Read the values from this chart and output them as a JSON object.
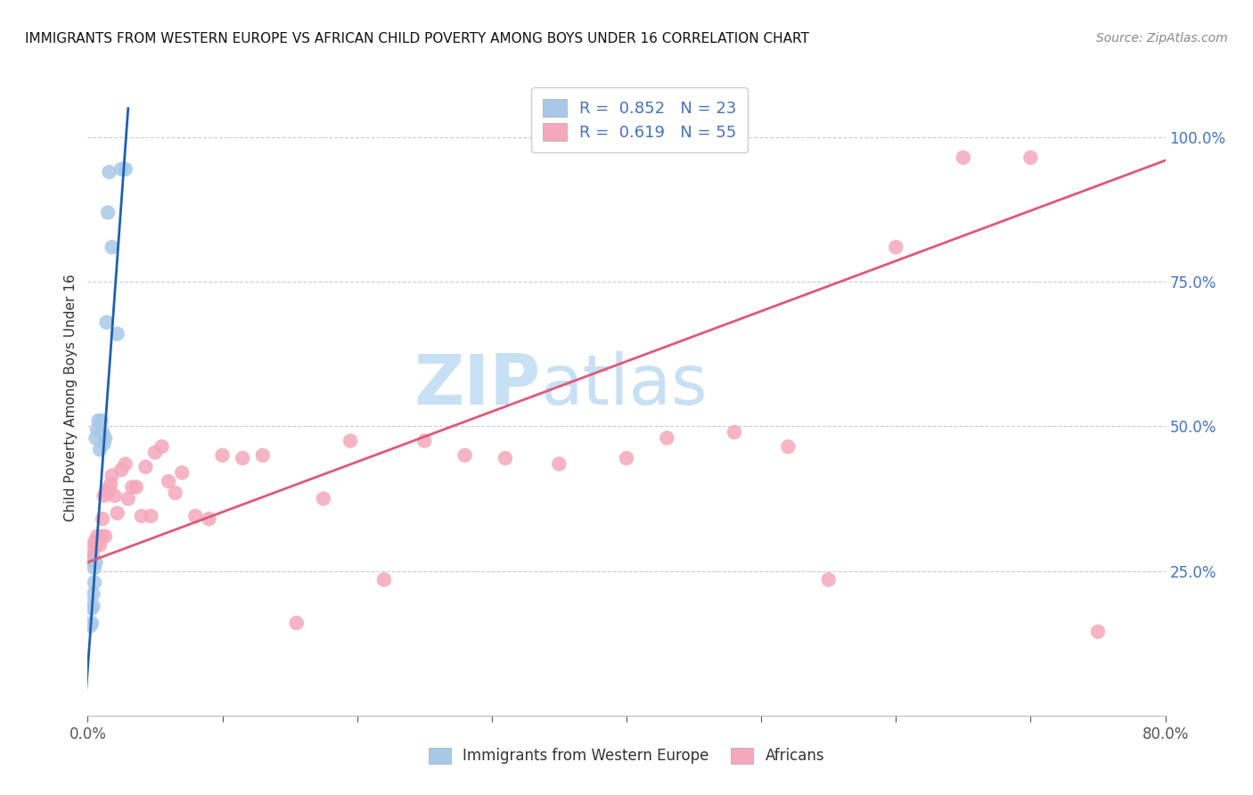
{
  "title": "IMMIGRANTS FROM WESTERN EUROPE VS AFRICAN CHILD POVERTY AMONG BOYS UNDER 16 CORRELATION CHART",
  "source": "Source: ZipAtlas.com",
  "ylabel": "Child Poverty Among Boys Under 16",
  "xlabel_blue": "Immigrants from Western Europe",
  "xlabel_pink": "Africans",
  "xlim": [
    0.0,
    0.8
  ],
  "ylim": [
    0.0,
    1.1
  ],
  "xticks": [
    0.0,
    0.1,
    0.2,
    0.3,
    0.4,
    0.5,
    0.6,
    0.7,
    0.8
  ],
  "xticklabels": [
    "0.0%",
    "",
    "",
    "",
    "",
    "",
    "",
    "",
    "80.0%"
  ],
  "yticks_right": [
    0.25,
    0.5,
    0.75,
    1.0
  ],
  "ytick_labels_right": [
    "25.0%",
    "50.0%",
    "75.0%",
    "100.0%"
  ],
  "legend_blue_R": "0.852",
  "legend_blue_N": "23",
  "legend_pink_R": "0.619",
  "legend_pink_N": "55",
  "blue_color": "#A8C8E8",
  "pink_color": "#F4A8BC",
  "line_blue": "#2060B0",
  "line_pink": "#E05878",
  "watermark_zip": "ZIP",
  "watermark_atlas": "atlas",
  "watermark_color": "#C8E0F4",
  "blue_x": [
    0.002,
    0.003,
    0.003,
    0.004,
    0.004,
    0.005,
    0.005,
    0.006,
    0.006,
    0.007,
    0.008,
    0.009,
    0.01,
    0.011,
    0.012,
    0.013,
    0.014,
    0.015,
    0.016,
    0.018,
    0.022,
    0.025,
    0.028
  ],
  "blue_y": [
    0.155,
    0.16,
    0.185,
    0.19,
    0.21,
    0.23,
    0.255,
    0.265,
    0.48,
    0.495,
    0.51,
    0.46,
    0.51,
    0.49,
    0.47,
    0.48,
    0.68,
    0.87,
    0.94,
    0.81,
    0.66,
    0.945,
    0.945
  ],
  "pink_x": [
    0.001,
    0.002,
    0.003,
    0.004,
    0.005,
    0.006,
    0.007,
    0.008,
    0.009,
    0.01,
    0.011,
    0.012,
    0.013,
    0.014,
    0.015,
    0.016,
    0.017,
    0.018,
    0.02,
    0.022,
    0.025,
    0.028,
    0.03,
    0.033,
    0.036,
    0.04,
    0.043,
    0.047,
    0.05,
    0.055,
    0.06,
    0.065,
    0.07,
    0.08,
    0.09,
    0.1,
    0.115,
    0.13,
    0.155,
    0.175,
    0.195,
    0.22,
    0.25,
    0.28,
    0.31,
    0.35,
    0.4,
    0.43,
    0.48,
    0.52,
    0.55,
    0.6,
    0.65,
    0.7,
    0.75
  ],
  "pink_y": [
    0.27,
    0.27,
    0.285,
    0.275,
    0.3,
    0.295,
    0.31,
    0.305,
    0.295,
    0.31,
    0.34,
    0.38,
    0.31,
    0.39,
    0.385,
    0.39,
    0.4,
    0.415,
    0.38,
    0.35,
    0.425,
    0.435,
    0.375,
    0.395,
    0.395,
    0.345,
    0.43,
    0.345,
    0.455,
    0.465,
    0.405,
    0.385,
    0.42,
    0.345,
    0.34,
    0.45,
    0.445,
    0.45,
    0.16,
    0.375,
    0.475,
    0.235,
    0.475,
    0.45,
    0.445,
    0.435,
    0.445,
    0.48,
    0.49,
    0.465,
    0.235,
    0.81,
    0.965,
    0.965,
    0.145
  ],
  "blue_line_x": [
    -0.005,
    0.03
  ],
  "blue_line_y": [
    -0.08,
    1.05
  ],
  "pink_line_x": [
    0.0,
    0.8
  ],
  "pink_line_y": [
    0.265,
    0.96
  ]
}
